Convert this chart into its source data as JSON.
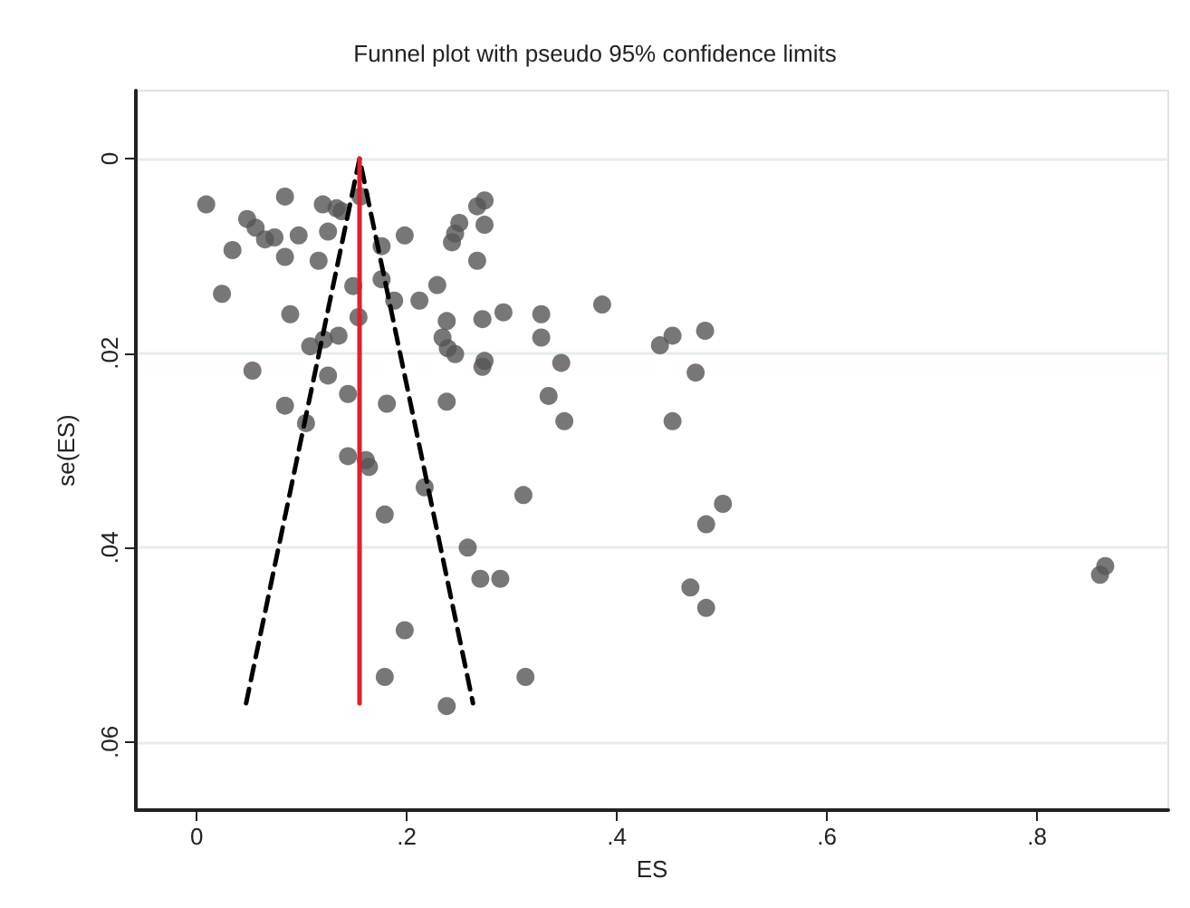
{
  "chart_data": {
    "type": "scatter",
    "title": "Funnel plot with pseudo 95% confidence limits",
    "xlabel": "ES",
    "ylabel": "se(ES)",
    "xlim": [
      -0.058,
      0.925
    ],
    "ylim": [
      0.067,
      -0.007
    ],
    "xticks": [
      {
        "value": 0,
        "label": "0"
      },
      {
        "value": 0.2,
        "label": ".2"
      },
      {
        "value": 0.4,
        "label": ".4"
      },
      {
        "value": 0.6,
        "label": ".6"
      },
      {
        "value": 0.8,
        "label": ".8"
      }
    ],
    "yticks": [
      {
        "value": 0,
        "label": "0"
      },
      {
        "value": 0.02,
        "label": ".02"
      },
      {
        "value": 0.04,
        "label": ".04"
      },
      {
        "value": 0.06,
        "label": ".06"
      }
    ],
    "grid": "y",
    "series": [
      {
        "color": "#555555",
        "marker": "circle",
        "x": [
          0.009,
          0.084,
          0.12,
          0.133,
          0.138,
          0.048,
          0.056,
          0.065,
          0.074,
          0.097,
          0.125,
          0.034,
          0.084,
          0.116,
          0.156,
          0.176,
          0.198,
          0.274,
          0.267,
          0.25,
          0.246,
          0.274,
          0.243,
          0.267,
          0.024,
          0.149,
          0.176,
          0.188,
          0.212,
          0.229,
          0.089,
          0.154,
          0.272,
          0.292,
          0.328,
          0.328,
          0.238,
          0.234,
          0.239,
          0.246,
          0.135,
          0.121,
          0.108,
          0.274,
          0.272,
          0.347,
          0.053,
          0.125,
          0.144,
          0.084,
          0.181,
          0.238,
          0.335,
          0.35,
          0.104,
          0.144,
          0.161,
          0.164,
          0.217,
          0.311,
          0.179,
          0.258,
          0.27,
          0.289,
          0.198,
          0.179,
          0.313,
          0.238,
          0.386,
          0.441,
          0.453,
          0.484,
          0.475,
          0.453,
          0.501,
          0.485,
          0.47,
          0.485,
          0.865,
          0.86
        ],
        "values": [
          0.0047,
          0.0039,
          0.0047,
          0.0051,
          0.0054,
          0.0062,
          0.0071,
          0.0083,
          0.0081,
          0.0079,
          0.0075,
          0.0094,
          0.0101,
          0.0105,
          0.0039,
          0.009,
          0.0079,
          0.0043,
          0.0049,
          0.0066,
          0.0077,
          0.0068,
          0.0086,
          0.0105,
          0.0139,
          0.0131,
          0.0124,
          0.0146,
          0.0146,
          0.013,
          0.016,
          0.0163,
          0.0165,
          0.0158,
          0.016,
          0.0184,
          0.0167,
          0.0184,
          0.0195,
          0.0201,
          0.0182,
          0.0186,
          0.0193,
          0.0208,
          0.0214,
          0.021,
          0.0218,
          0.0223,
          0.0242,
          0.0254,
          0.0252,
          0.025,
          0.0244,
          0.027,
          0.0272,
          0.0306,
          0.031,
          0.0317,
          0.0338,
          0.0346,
          0.0366,
          0.04,
          0.0432,
          0.0432,
          0.0485,
          0.0533,
          0.0533,
          0.0563,
          0.015,
          0.0192,
          0.0182,
          0.0177,
          0.022,
          0.027,
          0.0355,
          0.0376,
          0.0441,
          0.0462,
          0.0419,
          0.0428
        ]
      },
      {
        "type": "line",
        "color": "#000000",
        "line_style": "dashed",
        "marker": "none",
        "x": [
          0.047,
          0.155,
          0.263
        ],
        "values": [
          0.056,
          0,
          0.056
        ]
      },
      {
        "type": "line",
        "color": "#e0202a",
        "line_style": "solid",
        "marker": "none",
        "x": [
          0.155,
          0.155
        ],
        "values": [
          0,
          0.056
        ]
      }
    ]
  }
}
